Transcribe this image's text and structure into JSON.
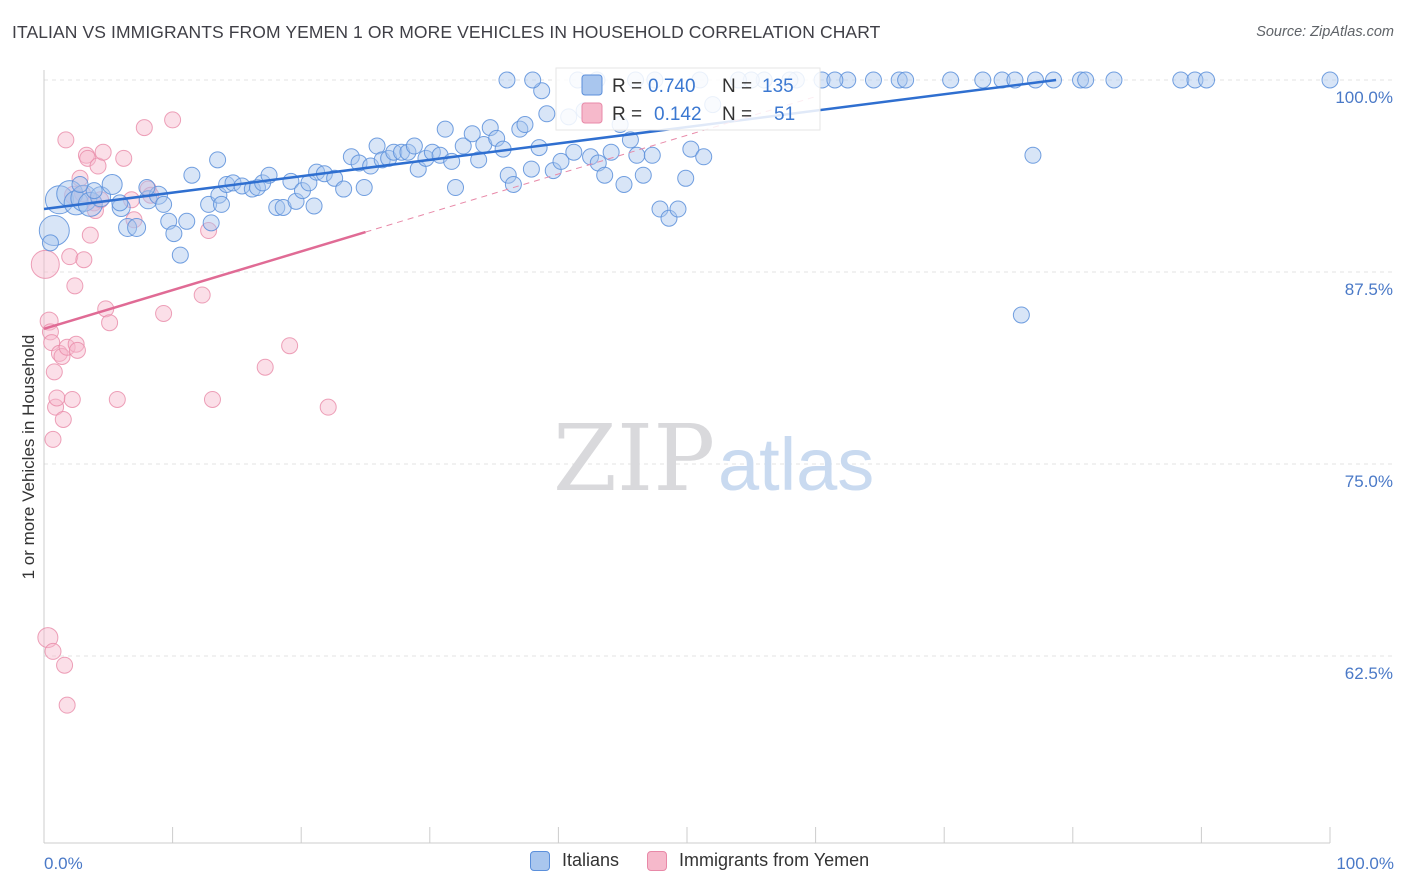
{
  "title": "ITALIAN VS IMMIGRANTS FROM YEMEN 1 OR MORE VEHICLES IN HOUSEHOLD CORRELATION CHART",
  "source": "Source: ZipAtlas.com",
  "watermark": {
    "zip": "ZIP",
    "atlas": "atlas"
  },
  "colors": {
    "blue_fill": "#a9c6ee",
    "blue_stroke": "#5b8fdb",
    "blue_line": "#2f6fd0",
    "pink_fill": "#f6b9cb",
    "pink_stroke": "#e889a8",
    "pink_line": "#e06b95",
    "grid": "#dcdcdc",
    "tick_text": "#4a79c7"
  },
  "stats_legend": [
    {
      "r_label": "R =",
      "r_value": "0.740",
      "n_label": "N =",
      "n_value": "135"
    },
    {
      "r_label": "R =",
      "r_value": "0.142",
      "n_label": "N =",
      "n_value": "51"
    }
  ],
  "chart_data": {
    "type": "scatter",
    "title": "ITALIAN VS IMMIGRANTS FROM YEMEN 1 OR MORE VEHICLES IN HOUSEHOLD CORRELATION CHART",
    "xlabel": "",
    "ylabel": "1 or more Vehicles in Household",
    "xlim": [
      0,
      100
    ],
    "ylim": [
      51.5,
      101.5
    ],
    "x_tick_labels": [
      "0.0%",
      "100.0%"
    ],
    "y_ticks": [
      {
        "value": 100.0,
        "label": "100.0%"
      },
      {
        "value": 87.5,
        "label": "87.5%"
      },
      {
        "value": 75.0,
        "label": "75.0%"
      },
      {
        "value": 62.5,
        "label": "62.5%"
      }
    ],
    "grid": true,
    "legend_position": "bottom-center",
    "series": [
      {
        "name": "Italians",
        "color": "#5b8fdb",
        "trend": {
          "x": [
            0,
            78.7
          ],
          "y": [
            91.6,
            100.0
          ],
          "extend_x": null
        },
        "points": [
          [
            0.8,
            90.2,
            15
          ],
          [
            1.2,
            92.2,
            14
          ],
          [
            2.0,
            92.6,
            13
          ],
          [
            2.5,
            92.0,
            12
          ],
          [
            3.1,
            92.3,
            13
          ],
          [
            3.6,
            91.9,
            12
          ],
          [
            4.4,
            92.4,
            10
          ],
          [
            5.3,
            93.2,
            10
          ],
          [
            6.0,
            91.7,
            9
          ],
          [
            6.5,
            90.4,
            9
          ],
          [
            7.2,
            90.4,
            9
          ],
          [
            8.1,
            92.2,
            9
          ],
          [
            8.9,
            92.5,
            9
          ],
          [
            9.3,
            91.9,
            8
          ],
          [
            9.7,
            90.8,
            8
          ],
          [
            10.1,
            90.0,
            8
          ],
          [
            10.6,
            88.6,
            8
          ],
          [
            11.1,
            90.8,
            8
          ],
          [
            11.5,
            93.8,
            8
          ],
          [
            12.8,
            91.9,
            8
          ],
          [
            13.0,
            90.7,
            8
          ],
          [
            13.6,
            92.5,
            8
          ],
          [
            13.8,
            91.9,
            8
          ],
          [
            14.2,
            93.2,
            8
          ],
          [
            14.7,
            93.3,
            8
          ],
          [
            15.4,
            93.1,
            8
          ],
          [
            16.2,
            92.9,
            8
          ],
          [
            16.6,
            93.0,
            8
          ],
          [
            17.0,
            93.3,
            8
          ],
          [
            17.5,
            93.8,
            8
          ],
          [
            18.1,
            91.7,
            8
          ],
          [
            18.6,
            91.7,
            8
          ],
          [
            19.2,
            93.4,
            8
          ],
          [
            19.6,
            92.1,
            8
          ],
          [
            20.1,
            92.8,
            8
          ],
          [
            20.6,
            93.3,
            8
          ],
          [
            21.2,
            94.0,
            8
          ],
          [
            21.8,
            93.9,
            8
          ],
          [
            22.6,
            93.6,
            8
          ],
          [
            23.3,
            92.9,
            8
          ],
          [
            23.9,
            95.0,
            8
          ],
          [
            24.5,
            94.6,
            8
          ],
          [
            24.9,
            93.0,
            8
          ],
          [
            25.4,
            94.4,
            8
          ],
          [
            25.9,
            95.7,
            8
          ],
          [
            26.3,
            94.8,
            8
          ],
          [
            26.8,
            94.9,
            8
          ],
          [
            27.2,
            95.3,
            8
          ],
          [
            27.8,
            95.3,
            8
          ],
          [
            28.3,
            95.3,
            8
          ],
          [
            28.8,
            95.7,
            8
          ],
          [
            29.1,
            94.2,
            8
          ],
          [
            29.7,
            94.9,
            8
          ],
          [
            30.2,
            95.3,
            8
          ],
          [
            30.8,
            95.1,
            8
          ],
          [
            31.2,
            96.8,
            8
          ],
          [
            31.7,
            94.7,
            8
          ],
          [
            32.0,
            93.0,
            8
          ],
          [
            32.6,
            95.7,
            8
          ],
          [
            33.3,
            96.5,
            8
          ],
          [
            33.8,
            94.8,
            8
          ],
          [
            34.2,
            95.8,
            8
          ],
          [
            34.7,
            96.9,
            8
          ],
          [
            35.2,
            96.2,
            8
          ],
          [
            35.7,
            95.5,
            8
          ],
          [
            36.1,
            93.8,
            8
          ],
          [
            36.5,
            93.2,
            8
          ],
          [
            37.0,
            96.8,
            8
          ],
          [
            37.4,
            97.1,
            8
          ],
          [
            37.9,
            94.2,
            8
          ],
          [
            38.5,
            95.6,
            8
          ],
          [
            38.7,
            99.3,
            8
          ],
          [
            39.1,
            97.8,
            8
          ],
          [
            39.6,
            94.1,
            8
          ],
          [
            40.2,
            94.7,
            8
          ],
          [
            40.8,
            97.6,
            8
          ],
          [
            41.2,
            95.3,
            8
          ],
          [
            42.0,
            98.0,
            8
          ],
          [
            42.5,
            95.0,
            8
          ],
          [
            43.1,
            94.6,
            8
          ],
          [
            43.6,
            93.8,
            8
          ],
          [
            44.1,
            95.3,
            8
          ],
          [
            44.8,
            97.1,
            8
          ],
          [
            45.1,
            93.2,
            8
          ],
          [
            45.6,
            96.1,
            8
          ],
          [
            46.1,
            95.1,
            8
          ],
          [
            46.6,
            93.8,
            8
          ],
          [
            47.3,
            95.1,
            8
          ],
          [
            47.9,
            91.6,
            8
          ],
          [
            48.6,
            91.0,
            8
          ],
          [
            49.3,
            91.6,
            8
          ],
          [
            49.9,
            93.6,
            8
          ],
          [
            50.3,
            95.5,
            8
          ],
          [
            51.3,
            95.0,
            8
          ],
          [
            52.0,
            98.4,
            8
          ],
          [
            56.0,
            100.0,
            8
          ],
          [
            58.5,
            100.0,
            8
          ],
          [
            60.5,
            100.0,
            8
          ],
          [
            62.5,
            100.0,
            8
          ],
          [
            64.5,
            100.0,
            8
          ],
          [
            66.5,
            100.0,
            8
          ],
          [
            67.0,
            100.0,
            8
          ],
          [
            70.5,
            100.0,
            8
          ],
          [
            73.0,
            100.0,
            8
          ],
          [
            74.5,
            100.0,
            8
          ],
          [
            75.5,
            100.0,
            8
          ],
          [
            77.1,
            100.0,
            8
          ],
          [
            78.5,
            100.0,
            8
          ],
          [
            80.6,
            100.0,
            8
          ],
          [
            81.0,
            100.0,
            8
          ],
          [
            83.2,
            100.0,
            8
          ],
          [
            88.4,
            100.0,
            8
          ],
          [
            89.5,
            100.0,
            8
          ],
          [
            90.4,
            100.0,
            8
          ],
          [
            100.0,
            100.0,
            8
          ],
          [
            36.0,
            100.0,
            8
          ],
          [
            41.5,
            100.0,
            8
          ],
          [
            46.0,
            100.0,
            8
          ],
          [
            51.0,
            100.0,
            8
          ],
          [
            55.0,
            100.0,
            8
          ],
          [
            54.0,
            100.0,
            8
          ],
          [
            43.0,
            100.0,
            8
          ],
          [
            47.5,
            100.0,
            8
          ],
          [
            38.0,
            100.0,
            8
          ],
          [
            58.0,
            100.0,
            8
          ],
          [
            61.5,
            100.0,
            8
          ],
          [
            76.0,
            84.7,
            8
          ],
          [
            76.9,
            95.1,
            8
          ],
          [
            21.0,
            91.8,
            8
          ],
          [
            13.5,
            94.8,
            8
          ],
          [
            8.0,
            93.0,
            8
          ],
          [
            5.9,
            92.0,
            8
          ],
          [
            3.9,
            92.8,
            8
          ],
          [
            2.8,
            93.2,
            8
          ],
          [
            0.5,
            89.4,
            8
          ]
        ]
      },
      {
        "name": "Immigrants from Yemen",
        "color": "#e889a8",
        "trend": {
          "x": [
            0,
            25.0
          ],
          "y": [
            83.8,
            90.1
          ],
          "extend_x": 60.0
        },
        "points": [
          [
            0.1,
            88.0,
            14
          ],
          [
            0.4,
            84.3,
            9
          ],
          [
            0.5,
            83.6,
            8
          ],
          [
            0.6,
            82.9,
            8
          ],
          [
            0.7,
            76.6,
            8
          ],
          [
            0.8,
            81.0,
            8
          ],
          [
            0.9,
            78.7,
            8
          ],
          [
            1.0,
            79.3,
            8
          ],
          [
            1.2,
            82.2,
            8
          ],
          [
            1.4,
            82.0,
            8
          ],
          [
            1.5,
            77.9,
            8
          ],
          [
            1.7,
            96.1,
            8
          ],
          [
            1.8,
            82.6,
            8
          ],
          [
            2.0,
            88.5,
            8
          ],
          [
            2.2,
            79.2,
            8
          ],
          [
            2.3,
            92.5,
            9
          ],
          [
            2.4,
            86.6,
            8
          ],
          [
            2.5,
            82.8,
            8
          ],
          [
            2.6,
            82.4,
            8
          ],
          [
            2.8,
            93.6,
            8
          ],
          [
            3.0,
            92.6,
            8
          ],
          [
            3.1,
            88.3,
            8
          ],
          [
            3.3,
            95.1,
            8
          ],
          [
            3.4,
            94.9,
            8
          ],
          [
            3.6,
            89.9,
            8
          ],
          [
            3.9,
            92.0,
            8
          ],
          [
            4.0,
            91.5,
            8
          ],
          [
            4.2,
            94.4,
            8
          ],
          [
            4.4,
            92.2,
            8
          ],
          [
            4.6,
            95.3,
            8
          ],
          [
            4.8,
            85.1,
            8
          ],
          [
            5.1,
            84.2,
            8
          ],
          [
            5.7,
            79.2,
            8
          ],
          [
            6.2,
            94.9,
            8
          ],
          [
            6.8,
            92.2,
            8
          ],
          [
            7.0,
            90.9,
            8
          ],
          [
            7.8,
            96.9,
            8
          ],
          [
            8.1,
            92.9,
            8
          ],
          [
            8.3,
            92.5,
            8
          ],
          [
            9.3,
            84.8,
            8
          ],
          [
            10.0,
            97.4,
            8
          ],
          [
            12.3,
            86.0,
            8
          ],
          [
            12.8,
            90.2,
            8
          ],
          [
            13.1,
            79.2,
            8
          ],
          [
            17.2,
            81.3,
            8
          ],
          [
            19.1,
            82.7,
            8
          ],
          [
            22.1,
            78.7,
            8
          ],
          [
            0.3,
            63.7,
            10
          ],
          [
            0.7,
            62.8,
            8
          ],
          [
            1.6,
            61.9,
            8
          ],
          [
            1.8,
            59.3,
            8
          ]
        ]
      }
    ]
  },
  "axis": {
    "y_label": "1 or more Vehicles in Household",
    "x_left_label": "0.0%",
    "x_right_label": "100.0%"
  },
  "legend": [
    {
      "label": "Italians"
    },
    {
      "label": "Immigrants from Yemen"
    }
  ]
}
